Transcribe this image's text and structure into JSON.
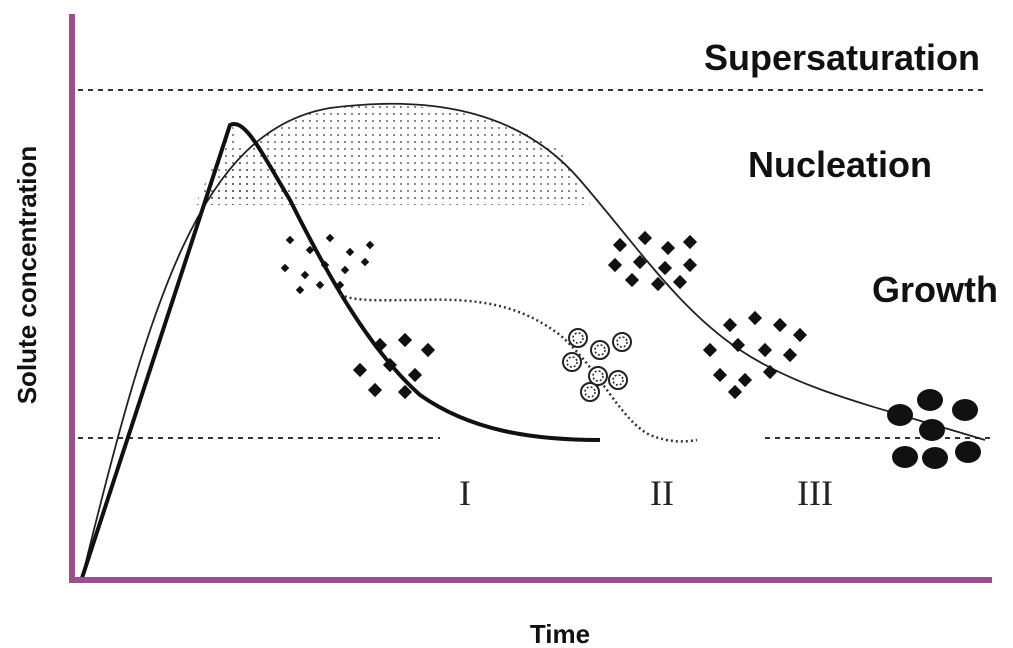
{
  "axes": {
    "y_label": "Solute concentration",
    "x_label": "Time"
  },
  "regions": {
    "supersaturation": "Supersaturation",
    "nucleation": "Nucleation",
    "growth": "Growth"
  },
  "stages": [
    "I",
    "II",
    "III"
  ]
}
